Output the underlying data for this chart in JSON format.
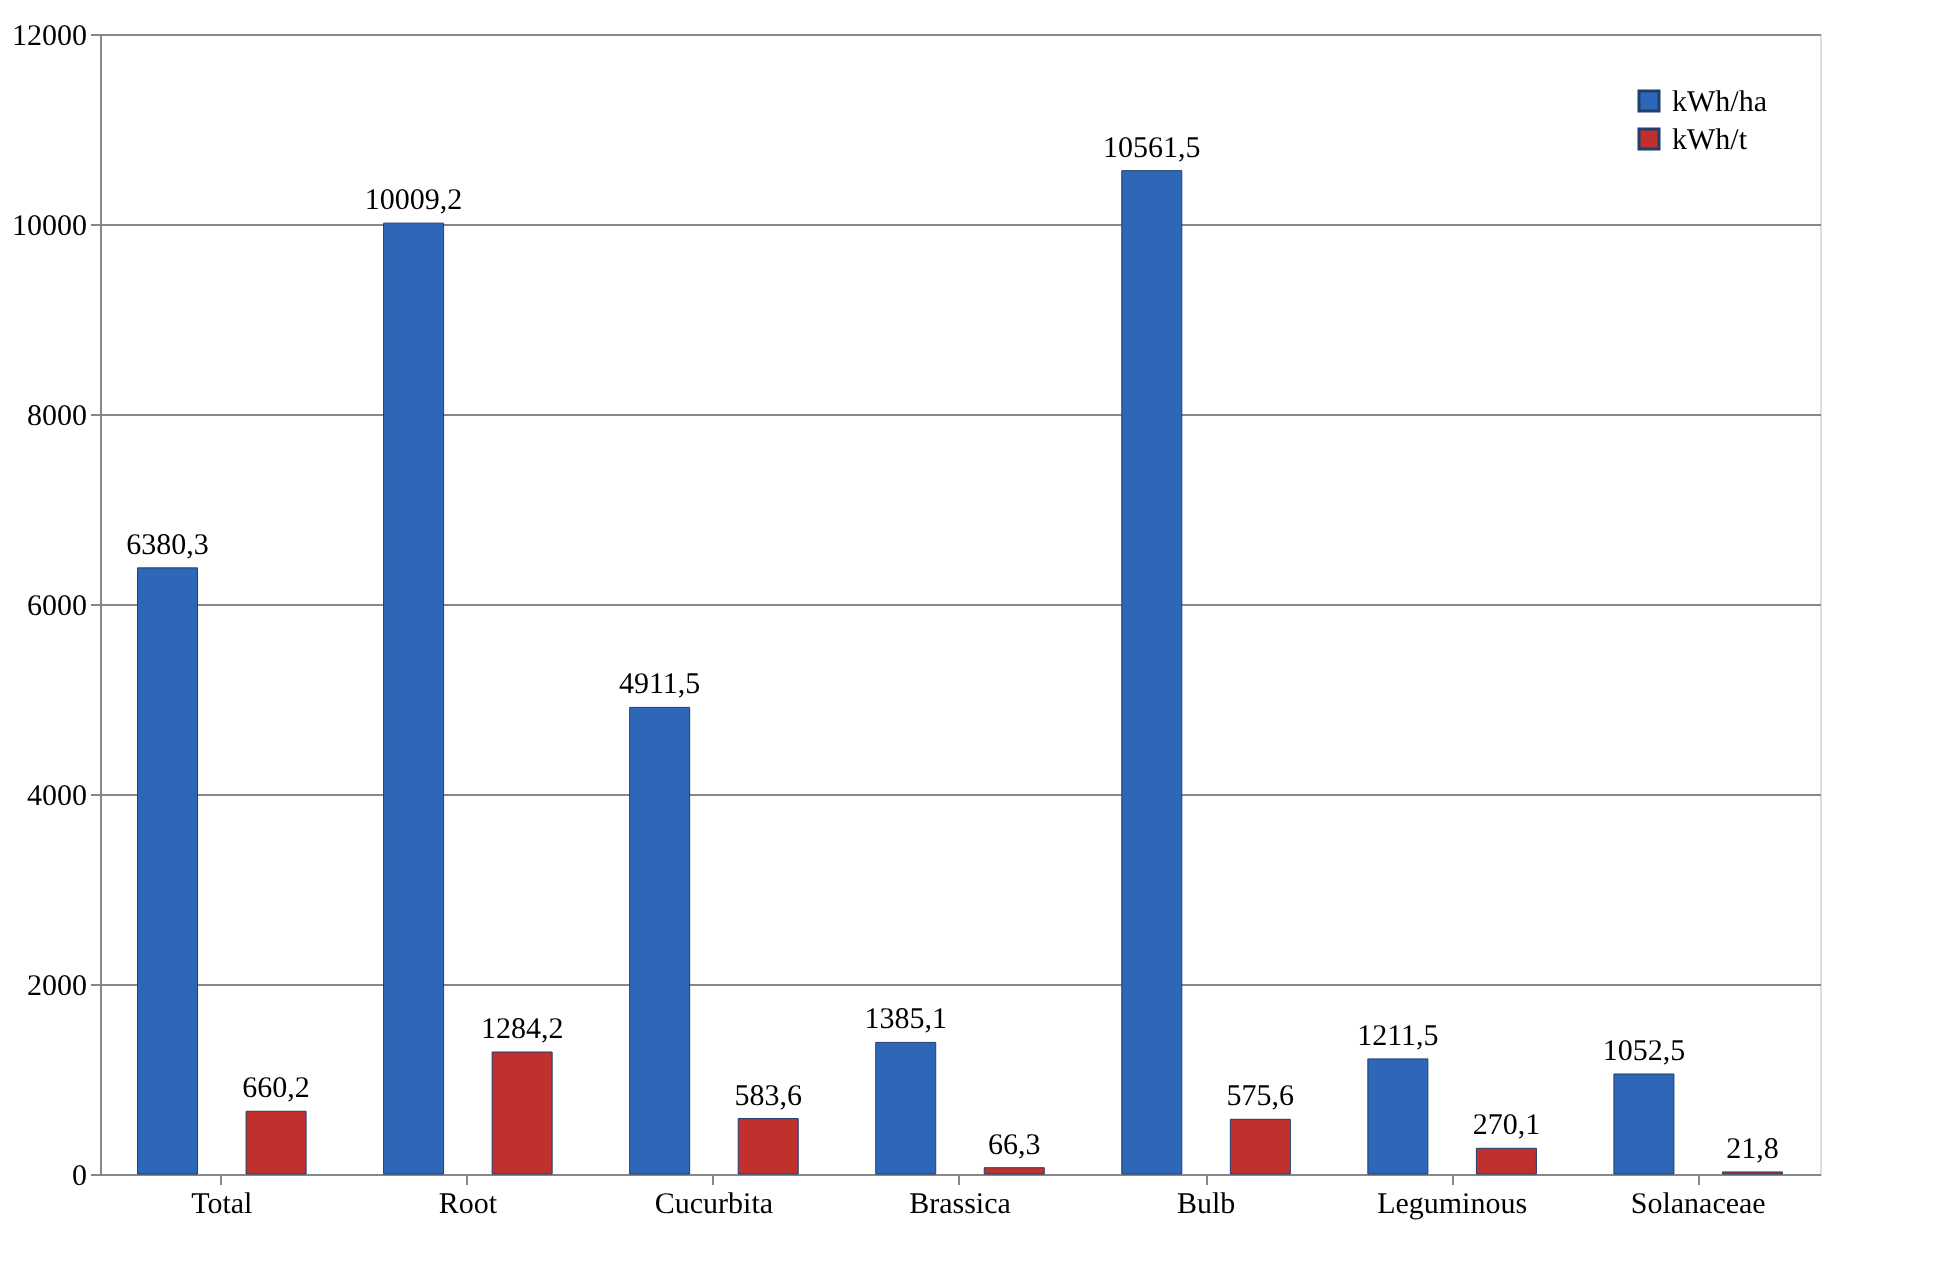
{
  "chart_data": {
    "type": "bar",
    "categories": [
      "Total",
      "Root",
      "Cucurbita",
      "Brassica",
      "Bulb",
      "Leguminous",
      "Solanaceae"
    ],
    "series": [
      {
        "name": "kWh/ha",
        "color": "#2e67b8",
        "values": [
          6380.3,
          10009.2,
          4911.5,
          1385.1,
          10561.5,
          1211.5,
          1052.5
        ],
        "value_labels": [
          "6380,3",
          "10009,2",
          "4911,5",
          "1385,1",
          "10561,5",
          "1211,5",
          "1052,5"
        ]
      },
      {
        "name": "kWh/t",
        "color": "#c0302c",
        "values": [
          660.2,
          1284.2,
          583.6,
          66.3,
          575.6,
          270.1,
          21.8
        ],
        "value_labels": [
          "660,2",
          "1284,2",
          "583,6",
          "66,3",
          "575,6",
          "270,1",
          "21,8"
        ]
      }
    ],
    "ylim": [
      0,
      12000
    ],
    "yticks": [
      0,
      2000,
      4000,
      6000,
      8000,
      10000,
      12000
    ],
    "grid": "y",
    "legend": "top right"
  }
}
